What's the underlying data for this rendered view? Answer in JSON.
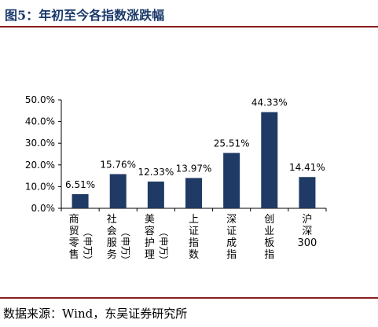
{
  "header": {
    "title": "图5：年初至今各指数涨跌幅"
  },
  "footer": {
    "source": "数据来源：Wind，东吴证券研究所"
  },
  "colors": {
    "bar": "#1f3a64",
    "title": "#1b3a6b",
    "rule": "#8a1e1e"
  },
  "chart_data": {
    "type": "bar",
    "categories": [
      "商贸零售（申万）",
      "社会服务（申万）",
      "美容护理（申万）",
      "上证指数",
      "深证成指",
      "创业板指",
      "沪深300"
    ],
    "category_labels": [
      {
        "main": "商贸零售",
        "sub": "（申万）"
      },
      {
        "main": "社会服务",
        "sub": "（申万）"
      },
      {
        "main": "美容护理",
        "sub": "（申万）"
      },
      {
        "main": "上证指数",
        "sub": ""
      },
      {
        "main": "深证成指",
        "sub": ""
      },
      {
        "main": "创业板指",
        "sub": ""
      },
      {
        "main": "沪深300",
        "sub": ""
      }
    ],
    "values": [
      6.51,
      15.76,
      12.33,
      13.97,
      25.51,
      44.33,
      14.41
    ],
    "data_labels": [
      "6.51%",
      "15.76%",
      "12.33%",
      "13.97%",
      "25.51%",
      "44.33%",
      "14.41%"
    ],
    "yticks": [
      0,
      10,
      20,
      30,
      40,
      50
    ],
    "ytick_labels": [
      "0.0%",
      "10.0%",
      "20.0%",
      "30.0%",
      "40.0%",
      "50.0%"
    ],
    "ylim": [
      0,
      50
    ],
    "grid": false,
    "legend": "none"
  }
}
